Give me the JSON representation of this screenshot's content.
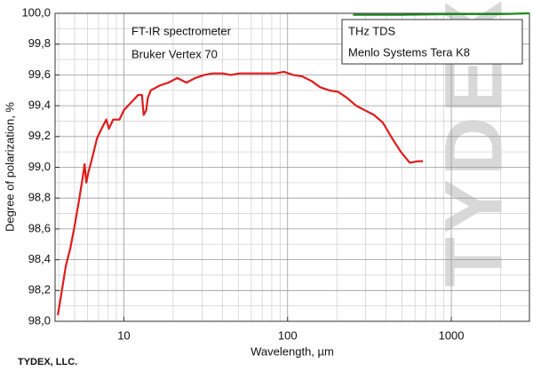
{
  "chart_data": {
    "type": "line",
    "xlabel": "Wavelength, µm",
    "ylabel": "Degree of polarization, %",
    "annotations": [
      "FT-IR spectrometer",
      "Bruker Vertex 70",
      "THz TDS",
      "Menlo Systems Tera K8"
    ],
    "footer": "TYDEX, LLC.",
    "watermark": "TYDEX",
    "xscale": "log",
    "grid": true,
    "xlim": [
      3.8,
      3000
    ],
    "ylim": [
      98.0,
      100.0
    ],
    "xticks": [
      10,
      100,
      1000
    ],
    "yticks": [
      {
        "value": 98.0,
        "label": "98,0"
      },
      {
        "value": 98.2,
        "label": "98,2"
      },
      {
        "value": 98.4,
        "label": "98,4"
      },
      {
        "value": 98.6,
        "label": "98,6"
      },
      {
        "value": 98.8,
        "label": "98,8"
      },
      {
        "value": 99.0,
        "label": "99,0"
      },
      {
        "value": 99.2,
        "label": "99,2"
      },
      {
        "value": 99.4,
        "label": "99,4"
      },
      {
        "value": 99.6,
        "label": "99,6"
      },
      {
        "value": 99.8,
        "label": "99,8"
      },
      {
        "value": 100.0,
        "label": "100,0"
      }
    ],
    "series": [
      {
        "color": "#e01b1b",
        "x": [
          3.95,
          4.15,
          4.42,
          4.7,
          5.0,
          5.33,
          5.6,
          5.75,
          5.9,
          6.05,
          6.44,
          6.86,
          7.3,
          7.8,
          8.1,
          8.6,
          9.4,
          10,
          10.6,
          11.3,
          12.2,
          12.9,
          13.2,
          13.7,
          14.0,
          14.6,
          16.5,
          18.7,
          21.2,
          24.1,
          27.3,
          31,
          35,
          40,
          45,
          51,
          58,
          66,
          74,
          84,
          95,
          108,
          123,
          140,
          158,
          180,
          204,
          231,
          262,
          297,
          337,
          382,
          434,
          492,
          557,
          632,
          670
        ],
        "values": [
          98.04,
          98.18,
          98.36,
          98.47,
          98.62,
          98.79,
          98.93,
          99.02,
          98.9,
          98.96,
          99.07,
          99.19,
          99.25,
          99.31,
          99.25,
          99.31,
          99.31,
          99.37,
          99.4,
          99.43,
          99.47,
          99.47,
          99.34,
          99.37,
          99.45,
          99.5,
          99.53,
          99.55,
          99.58,
          99.55,
          99.58,
          99.6,
          99.61,
          99.61,
          99.6,
          99.61,
          99.61,
          99.61,
          99.61,
          99.61,
          99.62,
          99.6,
          99.59,
          99.56,
          99.52,
          99.5,
          99.49,
          99.45,
          99.4,
          99.37,
          99.34,
          99.29,
          99.19,
          99.1,
          99.03,
          99.04,
          99.04
        ]
      },
      {
        "color": "#1a8a1a",
        "x": [
          251,
          500,
          1000,
          2000,
          3000
        ],
        "values": [
          99.99,
          99.99,
          99.995,
          99.995,
          100.0
        ]
      }
    ]
  }
}
